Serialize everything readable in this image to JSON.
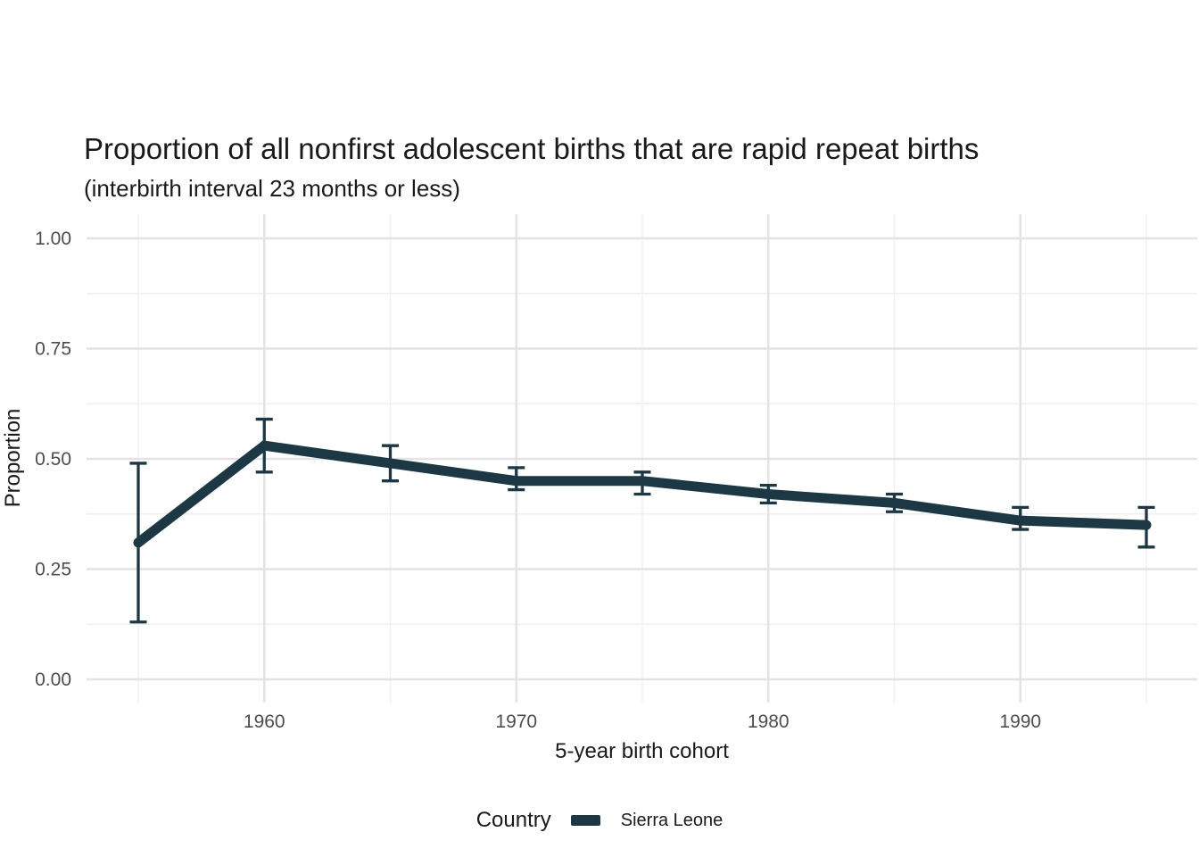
{
  "title": "Proportion of all nonfirst adolescent births that are rapid repeat births",
  "subtitle": "(interbirth interval 23 months or less)",
  "colors": {
    "background": "#ffffff",
    "series": "#1b3844",
    "grid_major": "#e3e3e3",
    "grid_minor": "#efefef",
    "axis_text": "#4d4d4d",
    "title_text": "#1a1a1a"
  },
  "legend": {
    "title": "Country",
    "position": "bottom",
    "entries": [
      {
        "label": "Sierra Leone",
        "color": "#1b3844"
      }
    ]
  },
  "axes": {
    "x_title": "5-year birth cohort",
    "y_title": "Proportion"
  },
  "chart_data": {
    "type": "line",
    "title": "Proportion of all nonfirst adolescent births that are rapid repeat births",
    "subtitle": "(interbirth interval 23 months or less)",
    "xlabel": "5-year birth cohort",
    "ylabel": "Proportion",
    "x": [
      1955,
      1960,
      1965,
      1970,
      1975,
      1980,
      1985,
      1990,
      1995
    ],
    "series": [
      {
        "name": "Sierra Leone",
        "color": "#1b3844",
        "values": [
          0.31,
          0.53,
          0.49,
          0.45,
          0.45,
          0.42,
          0.4,
          0.36,
          0.35
        ],
        "ci_lower": [
          0.13,
          0.47,
          0.45,
          0.43,
          0.42,
          0.4,
          0.38,
          0.34,
          0.3
        ],
        "ci_upper": [
          0.49,
          0.59,
          0.53,
          0.48,
          0.47,
          0.44,
          0.42,
          0.39,
          0.39
        ]
      }
    ],
    "error_bars": true,
    "xticks": [
      1960,
      1970,
      1980,
      1990
    ],
    "xticks_minor": [
      1955,
      1965,
      1975,
      1985,
      1995
    ],
    "yticks": [
      0,
      0.25,
      0.5,
      0.75,
      1
    ],
    "ytick_labels": [
      "0.00",
      "0.25",
      "0.50",
      "0.75",
      "1.00"
    ],
    "yticks_minor": [
      0.125,
      0.375,
      0.625,
      0.875
    ],
    "xlim": [
      1953,
      1997
    ],
    "ylim": [
      0,
      1
    ],
    "grid": "major-and-minor",
    "legend_position": "bottom"
  }
}
